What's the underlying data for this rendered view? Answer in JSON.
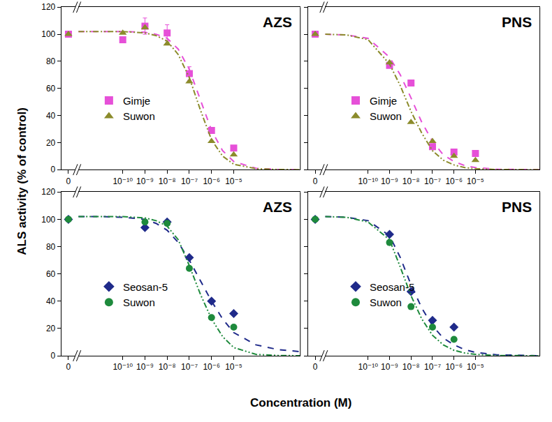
{
  "chart_data": {
    "type": "scatter",
    "x_label": "Concentration (M)",
    "y_label": "ALS activity (% of control)",
    "panels": [
      {
        "title": "AZS",
        "log": "x",
        "grid": false,
        "legend": "lower left",
        "xlim": [
          1e-12,
          0.01
        ],
        "ylim": [
          0,
          120
        ],
        "xticks": [
          0,
          {
            "value": 1e-10,
            "label": "10⁻¹⁰"
          },
          {
            "value": 1e-09,
            "label": "10⁻⁹"
          },
          {
            "value": 1e-08,
            "label": "10⁻⁸"
          },
          {
            "value": 1e-07,
            "label": "10⁻⁷"
          },
          {
            "value": 1e-06,
            "label": "10⁻⁶"
          },
          {
            "value": 1e-05,
            "label": "10⁻⁵"
          }
        ],
        "yticks": [
          0,
          20,
          40,
          60,
          80,
          100,
          120
        ],
        "series": [
          {
            "name": "Gimje",
            "color": "#e650d8",
            "marker": "square",
            "x": [
              0,
              1e-10,
              1e-09,
              1e-08,
              1e-07,
              1e-06,
              1e-05
            ],
            "values": [
              100,
              96,
              106,
              101,
              71,
              29,
              16
            ],
            "errors": [
              0,
              0,
              6,
              6,
              5,
              2,
              0
            ],
            "fit": {
              "line_style": "dashed",
              "x": [
                1e-12,
                1e-11,
                1e-10,
                1e-09,
                3.16e-09,
                1e-08,
                3.16e-08,
                1e-07,
                3.16e-07,
                1e-06,
                3.16e-06,
                1e-05,
                0.0001,
                0.001,
                0.01
              ],
              "values": [
                102,
                102,
                102,
                101.5,
                100,
                97,
                89,
                74,
                52,
                29,
                14,
                6,
                1,
                0.2,
                0
              ]
            }
          },
          {
            "name": "Suwon",
            "color": "#8b8b2b",
            "marker": "triangle-up",
            "x": [
              0,
              1e-10,
              1e-09,
              1e-08,
              1e-07,
              1e-06,
              1e-05
            ],
            "values": [
              100,
              101,
              105,
              93,
              65,
              21,
              11
            ],
            "fit": {
              "line_style": "dashdotdot",
              "x": [
                1e-12,
                1e-11,
                1e-10,
                1e-09,
                3.16e-09,
                1e-08,
                3.16e-08,
                1e-07,
                3.16e-07,
                1e-06,
                3.16e-06,
                1e-05,
                0.0001,
                0.001,
                0.01
              ],
              "values": [
                102,
                102,
                102,
                101,
                99,
                95,
                85,
                68,
                44,
                22,
                10,
                4,
                0.7,
                0.1,
                0
              ]
            }
          }
        ]
      },
      {
        "title": "PNS",
        "log": "x",
        "grid": false,
        "legend": "lower left",
        "tick_labels": "x",
        "xlim": [
          1e-12,
          0.01
        ],
        "ylim": [
          0,
          120
        ],
        "xticks": [
          0,
          {
            "value": 1e-10,
            "label": "10⁻¹⁰"
          },
          {
            "value": 1e-09,
            "label": "10⁻⁹"
          },
          {
            "value": 1e-08,
            "label": "10⁻⁸"
          },
          {
            "value": 1e-07,
            "label": "10⁻⁷"
          },
          {
            "value": 1e-06,
            "label": "10⁻⁶"
          },
          {
            "value": 1e-05,
            "label": "10⁻⁵"
          }
        ],
        "yticks": [
          0,
          20,
          40,
          60,
          80,
          100,
          120
        ],
        "series": [
          {
            "name": "Gimje",
            "color": "#e650d8",
            "marker": "square",
            "x": [
              0,
              1e-09,
              1e-08,
              1e-07,
              1e-06,
              1e-05
            ],
            "values": [
              100,
              77,
              64,
              17,
              13,
              12
            ],
            "fit": {
              "line_style": "dashed",
              "x": [
                1e-12,
                1e-11,
                1e-10,
                1e-09,
                3.16e-09,
                1e-08,
                3.16e-08,
                1e-07,
                3.16e-07,
                1e-06,
                3.16e-06,
                1e-05,
                0.0001,
                0.001,
                0.01
              ],
              "values": [
                100,
                99.5,
                97,
                83,
                70,
                53,
                35,
                21,
                11,
                6,
                3,
                1.5,
                0.3,
                0,
                0
              ]
            }
          },
          {
            "name": "Suwon",
            "color": "#8b8b2b",
            "marker": "triangle-up",
            "x": [
              0,
              1e-09,
              1e-08,
              1e-07,
              1e-06,
              1e-05
            ],
            "values": [
              100,
              79,
              35,
              21,
              10,
              7
            ],
            "fit": {
              "line_style": "dashdotdot",
              "x": [
                1e-12,
                1e-11,
                1e-10,
                1e-09,
                3.16e-09,
                1e-08,
                3.16e-08,
                1e-07,
                3.16e-07,
                1e-06,
                3.16e-06,
                1e-05,
                0.0001,
                0.001,
                0.01
              ],
              "values": [
                100,
                99.5,
                96,
                78,
                62,
                43,
                27,
                14,
                7,
                3.5,
                1.5,
                0.7,
                0.1,
                0,
                0
              ]
            }
          }
        ]
      },
      {
        "title": "AZS",
        "log": "x",
        "grid": false,
        "legend": "lower left",
        "xlim": [
          1e-12,
          0.01
        ],
        "ylim": [
          0,
          120
        ],
        "xticks": [
          0,
          {
            "value": 1e-10,
            "label": "10⁻¹⁰"
          },
          {
            "value": 1e-09,
            "label": "10⁻⁹"
          },
          {
            "value": 1e-08,
            "label": "10⁻⁸"
          },
          {
            "value": 1e-07,
            "label": "10⁻⁷"
          },
          {
            "value": 1e-06,
            "label": "10⁻⁶"
          },
          {
            "value": 1e-05,
            "label": "10⁻⁵"
          }
        ],
        "yticks": [
          0,
          20,
          40,
          60,
          80,
          100,
          120
        ],
        "series": [
          {
            "name": "Seosan-5",
            "color": "#1f2a8a",
            "marker": "diamond",
            "x": [
              0,
              1e-09,
              1e-08,
              1e-07,
              1e-06,
              1e-05
            ],
            "values": [
              100,
              94,
              98,
              72,
              40,
              31
            ],
            "fit": {
              "line_style": "dashed",
              "x": [
                1e-12,
                1e-11,
                1e-10,
                1e-09,
                3.16e-09,
                1e-08,
                3.16e-08,
                1e-07,
                3.16e-07,
                1e-06,
                3.16e-06,
                1e-05,
                0.0001,
                0.001,
                0.01
              ],
              "values": [
                102,
                102,
                101.5,
                100,
                97,
                92,
                83,
                70,
                55,
                40,
                27,
                17,
                8,
                4.5,
                3
              ]
            }
          },
          {
            "name": "Suwon",
            "color": "#1e8a3c",
            "marker": "circle",
            "x": [
              0,
              1e-09,
              1e-08,
              1e-07,
              1e-06,
              1e-05
            ],
            "values": [
              100,
              98,
              97,
              64,
              28,
              21
            ],
            "fit": {
              "line_style": "dashdotdot",
              "x": [
                1e-12,
                1e-11,
                1e-10,
                1e-09,
                3.16e-09,
                1e-08,
                3.16e-08,
                1e-07,
                3.16e-07,
                1e-06,
                3.16e-06,
                1e-05,
                0.0001,
                0.001,
                0.01
              ],
              "values": [
                102,
                102,
                102,
                101,
                99,
                95,
                85,
                66,
                45,
                27,
                14,
                6,
                1,
                0.2,
                0
              ]
            }
          }
        ]
      },
      {
        "title": "PNS",
        "log": "x",
        "grid": false,
        "legend": "lower left",
        "tick_labels": "x",
        "xlim": [
          1e-12,
          0.01
        ],
        "ylim": [
          0,
          120
        ],
        "xticks": [
          0,
          {
            "value": 1e-10,
            "label": "10⁻¹⁰"
          },
          {
            "value": 1e-09,
            "label": "10⁻⁹"
          },
          {
            "value": 1e-08,
            "label": "10⁻⁸"
          },
          {
            "value": 1e-07,
            "label": "10⁻⁷"
          },
          {
            "value": 1e-06,
            "label": "10⁻⁶"
          },
          {
            "value": 1e-05,
            "label": "10⁻⁵"
          }
        ],
        "yticks": [
          0,
          20,
          40,
          60,
          80,
          100,
          120
        ],
        "series": [
          {
            "name": "Seosan-5",
            "color": "#1f2a8a",
            "marker": "diamond",
            "x": [
              0,
              1e-09,
              1e-08,
              1e-07,
              1e-06
            ],
            "values": [
              100,
              89,
              47,
              26,
              21
            ],
            "fit": {
              "line_style": "dashed",
              "x": [
                1e-12,
                1e-11,
                1e-10,
                1e-09,
                3.16e-09,
                1e-08,
                3.16e-08,
                1e-07,
                3.16e-07,
                1e-06,
                3.16e-06,
                1e-05,
                0.0001,
                0.001,
                0.01
              ],
              "values": [
                102,
                101.5,
                99,
                88,
                72,
                52,
                35,
                22,
                13,
                8,
                4.5,
                2.5,
                0.7,
                0.2,
                0
              ]
            }
          },
          {
            "name": "Suwon",
            "color": "#1e8a3c",
            "marker": "circle",
            "x": [
              0,
              1e-09,
              1e-08,
              1e-07,
              1e-06
            ],
            "values": [
              100,
              83,
              36,
              21,
              12
            ],
            "fit": {
              "line_style": "dashdotdot",
              "x": [
                1e-12,
                1e-11,
                1e-10,
                1e-09,
                3.16e-09,
                1e-08,
                3.16e-08,
                1e-07,
                3.16e-07,
                1e-06,
                3.16e-06,
                1e-05,
                0.0001,
                0.001,
                0.01
              ],
              "values": [
                102,
                101.5,
                98,
                85,
                65,
                44,
                27,
                15,
                8,
                4,
                2,
                1,
                0.2,
                0,
                0
              ]
            }
          }
        ]
      }
    ]
  }
}
